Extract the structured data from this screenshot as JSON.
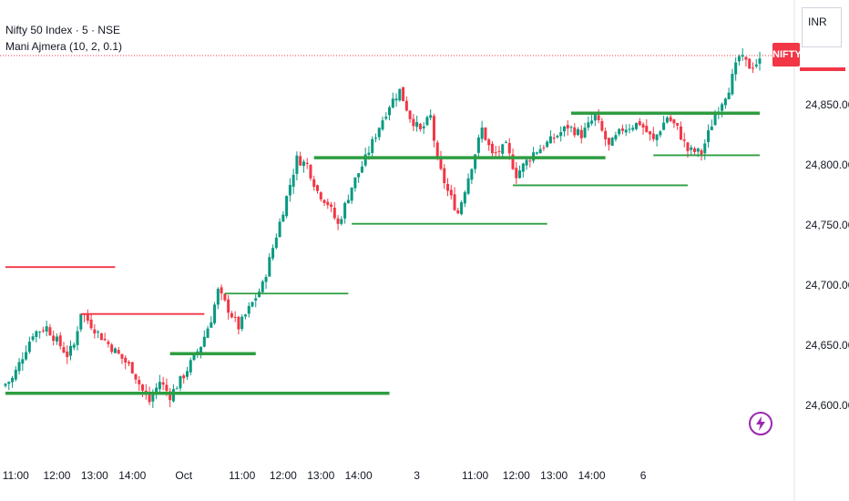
{
  "header": {
    "title": "Nifty 50 Index · 5 · NSE",
    "indicator": "Mani Ajmera (10, 2, 0.1)"
  },
  "currency_box": {
    "label": "INR"
  },
  "symbol_tag": {
    "label": "NIFTY"
  },
  "colors": {
    "up": "#089981",
    "down": "#f23645",
    "support": "#2e9d41",
    "resistance": "#f23645",
    "axis_text": "#131722",
    "lightning": "#9c27b0"
  },
  "icons": {
    "quick_action": "lightning-icon"
  },
  "chart_data": {
    "type": "candlestick",
    "title": "Nifty 50 Index · 5 · NSE",
    "y_axis": {
      "ticks": [
        "24,600.00",
        "24,650.00",
        "24,700.00",
        "24,750.00",
        "24,800.00",
        "24,850.00"
      ],
      "ylim": [
        24580,
        24900
      ]
    },
    "x_axis": {
      "ticks": [
        "11:00",
        "12:00",
        "13:00",
        "14:00",
        "Oct",
        "11:00",
        "12:00",
        "13:00",
        "14:00",
        "3",
        "11:00",
        "12:00",
        "13:00",
        "14:00",
        "6"
      ]
    },
    "price_path": [
      [
        0,
        24618
      ],
      [
        2,
        24622
      ],
      [
        8,
        24660
      ],
      [
        12,
        24665
      ],
      [
        18,
        24642
      ],
      [
        20,
        24650
      ],
      [
        22,
        24678
      ],
      [
        27,
        24660
      ],
      [
        32,
        24645
      ],
      [
        37,
        24630
      ],
      [
        40,
        24612
      ],
      [
        42,
        24603
      ],
      [
        45,
        24620
      ],
      [
        48,
        24608
      ],
      [
        52,
        24625
      ],
      [
        57,
        24650
      ],
      [
        60,
        24672
      ],
      [
        62,
        24695
      ],
      [
        68,
        24665
      ],
      [
        75,
        24700
      ],
      [
        80,
        24752
      ],
      [
        85,
        24805
      ],
      [
        88,
        24800
      ],
      [
        91,
        24778
      ],
      [
        94,
        24768
      ],
      [
        97,
        24750
      ],
      [
        101,
        24782
      ],
      [
        105,
        24805
      ],
      [
        109,
        24832
      ],
      [
        112,
        24850
      ],
      [
        115,
        24862
      ],
      [
        118,
        24840
      ],
      [
        121,
        24828
      ],
      [
        124,
        24840
      ],
      [
        126,
        24802
      ],
      [
        129,
        24778
      ],
      [
        132,
        24760
      ],
      [
        136,
        24800
      ],
      [
        139,
        24830
      ],
      [
        142,
        24808
      ],
      [
        146,
        24815
      ],
      [
        149,
        24792
      ],
      [
        154,
        24810
      ],
      [
        159,
        24820
      ],
      [
        164,
        24832
      ],
      [
        168,
        24825
      ],
      [
        172,
        24840
      ],
      [
        176,
        24815
      ],
      [
        180,
        24830
      ],
      [
        185,
        24835
      ],
      [
        189,
        24820
      ],
      [
        193,
        24840
      ],
      [
        196,
        24830
      ],
      [
        199,
        24812
      ],
      [
        203,
        24810
      ],
      [
        207,
        24842
      ],
      [
        211,
        24864
      ],
      [
        214,
        24890
      ],
      [
        217,
        24882
      ],
      [
        220,
        24886
      ]
    ],
    "levels": [
      {
        "role": "resistance",
        "price": 24715,
        "x_from": 0,
        "x_to": 32
      },
      {
        "role": "resistance",
        "price": 24676,
        "x_from": 22,
        "x_to": 58
      },
      {
        "role": "support",
        "price": 24610,
        "x_from": 0,
        "x_to": 112
      },
      {
        "role": "support",
        "price": 24643,
        "x_from": 48,
        "x_to": 73
      },
      {
        "role": "support",
        "price": 24693,
        "x_from": 64,
        "x_to": 100
      },
      {
        "role": "support",
        "price": 24806,
        "x_from": 90,
        "x_to": 175
      },
      {
        "role": "support",
        "price": 24751,
        "x_from": 101,
        "x_to": 158
      },
      {
        "role": "support",
        "price": 24783,
        "x_from": 148,
        "x_to": 199
      },
      {
        "role": "support",
        "price": 24843,
        "x_from": 165,
        "x_to": 220
      },
      {
        "role": "support",
        "price": 24808,
        "x_from": 189,
        "x_to": 220
      }
    ],
    "last_price": 24890
  }
}
